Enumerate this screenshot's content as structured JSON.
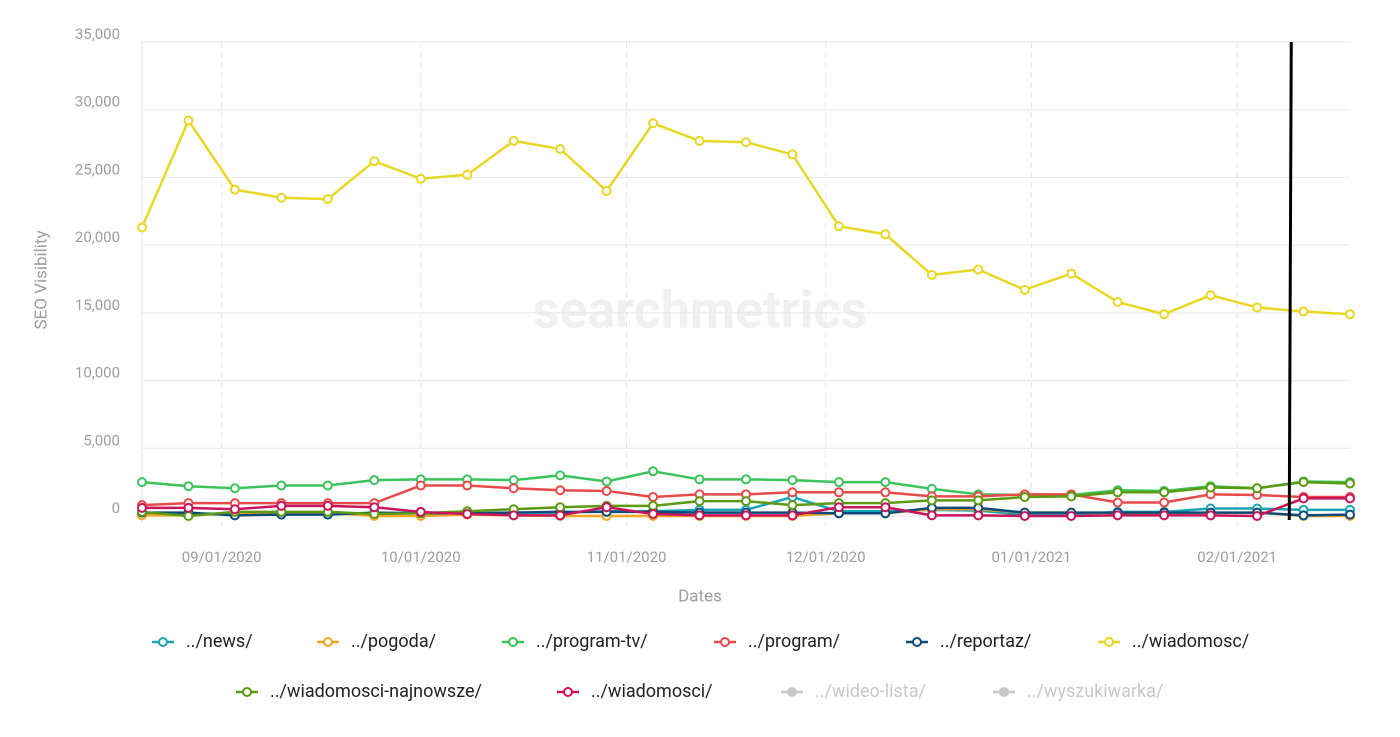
{
  "chart_data": {
    "type": "line",
    "watermark": "searchmetrics",
    "x_label": "Dates",
    "y_label": "SEO Visibility",
    "x": [
      "2020-08-20",
      "2020-08-27",
      "2020-09-03",
      "2020-09-10",
      "2020-09-17",
      "2020-09-24",
      "2020-10-01",
      "2020-10-08",
      "2020-10-15",
      "2020-10-22",
      "2020-10-29",
      "2020-11-05",
      "2020-11-12",
      "2020-11-19",
      "2020-11-26",
      "2020-12-03",
      "2020-12-10",
      "2020-12-17",
      "2020-12-24",
      "2020-12-31",
      "2021-01-07",
      "2021-01-14",
      "2021-01-21",
      "2021-01-28",
      "2021-02-04",
      "2021-02-11",
      "2021-02-18"
    ],
    "xlim": [
      "2020-08-20",
      "2021-02-18"
    ],
    "xticks": [
      {
        "value": "2020-09-01",
        "label": "09/01/2020"
      },
      {
        "value": "2020-10-01",
        "label": "10/01/2020"
      },
      {
        "value": "2020-11-01",
        "label": "11/01/2020"
      },
      {
        "value": "2020-12-01",
        "label": "12/01/2020"
      },
      {
        "value": "2021-01-01",
        "label": "01/01/2021"
      },
      {
        "value": "2021-02-01",
        "label": "02/01/2021"
      }
    ],
    "ylim": [
      0,
      35000
    ],
    "yticks": [
      0,
      {
        "value": 5000,
        "label": "5,000"
      },
      {
        "value": 10000,
        "label": "10,000"
      },
      {
        "value": 15000,
        "label": "15,000"
      },
      {
        "value": 20000,
        "label": "20,000"
      },
      {
        "value": 25000,
        "label": "25,000"
      },
      {
        "value": 30000,
        "label": "30,000"
      },
      {
        "value": 35000,
        "label": "35,000"
      }
    ],
    "grid": true,
    "legend": "bottom",
    "marker_line": "2021-02-09",
    "series": [
      {
        "name": "../news/",
        "color": "#1aa3b3",
        "values": [
          100,
          150,
          200,
          200,
          200,
          200,
          250,
          150,
          250,
          250,
          350,
          350,
          450,
          450,
          1400,
          350,
          350,
          450,
          400,
          100,
          100,
          300,
          300,
          550,
          550,
          450,
          450
        ]
      },
      {
        "name": "../pogoda/",
        "color": "#f5a623",
        "values": [
          50,
          50,
          200,
          250,
          250,
          0,
          0,
          100,
          50,
          0,
          0,
          0,
          0,
          0,
          0,
          200,
          200,
          500,
          500,
          250,
          250,
          200,
          200,
          250,
          250,
          0,
          0
        ]
      },
      {
        "name": "../program-tv/",
        "color": "#3cc35a",
        "values": [
          2500,
          2200,
          2050,
          2250,
          2250,
          2650,
          2700,
          2700,
          2650,
          3000,
          2550,
          3300,
          2700,
          2700,
          2650,
          2500,
          2500,
          2000,
          1600,
          1550,
          1550,
          1900,
          1850,
          2200,
          2050,
          2550,
          2500
        ]
      },
      {
        "name": "../program/",
        "color": "#e84a4a",
        "values": [
          800,
          950,
          950,
          950,
          950,
          950,
          2250,
          2250,
          2050,
          1900,
          1850,
          1400,
          1600,
          1600,
          1750,
          1750,
          1750,
          1450,
          1450,
          1600,
          1600,
          1000,
          1000,
          1600,
          1550,
          1400,
          1400
        ]
      },
      {
        "name": "../reportaz/",
        "color": "#0d4a7a",
        "values": [
          250,
          250,
          50,
          100,
          100,
          250,
          200,
          200,
          250,
          300,
          300,
          300,
          250,
          250,
          250,
          200,
          200,
          600,
          600,
          250,
          250,
          250,
          250,
          250,
          250,
          50,
          100
        ]
      },
      {
        "name": "../wiadomosc/",
        "color": "#e8d825",
        "values": [
          21300,
          29200,
          24100,
          23500,
          23400,
          26200,
          24900,
          25200,
          27700,
          27100,
          24000,
          29000,
          27700,
          27600,
          26700,
          21400,
          20800,
          17800,
          18200,
          16700,
          17900,
          15800,
          14900,
          16300,
          15400,
          15100,
          14900
        ]
      },
      {
        "name": "../wiadomosci-najnowsze/",
        "color": "#5b9a12",
        "values": [
          300,
          0,
          300,
          300,
          300,
          150,
          200,
          350,
          500,
          650,
          750,
          750,
          1100,
          1100,
          800,
          950,
          950,
          1150,
          1150,
          1400,
          1450,
          1750,
          1750,
          2100,
          2050,
          2500,
          2400
        ]
      },
      {
        "name": "../wiadomosci/",
        "color": "#c8145a",
        "values": [
          600,
          600,
          500,
          750,
          750,
          650,
          300,
          150,
          50,
          50,
          650,
          150,
          50,
          50,
          50,
          650,
          650,
          50,
          50,
          0,
          0,
          50,
          50,
          50,
          0,
          1300,
          1300
        ]
      }
    ],
    "legend_hidden": [
      "../wideo-lista/",
      "../wyszukiwarka/"
    ]
  }
}
